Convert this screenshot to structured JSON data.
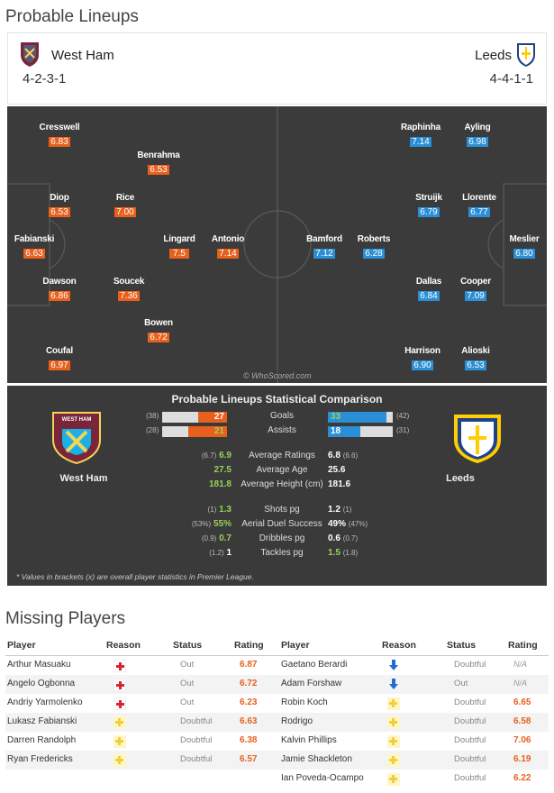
{
  "title": "Probable Lineups",
  "home": {
    "name": "West Ham",
    "formation": "4-2-3-1",
    "color": "#e8601c",
    "players": [
      {
        "name": "Cresswell",
        "rating": "6.83"
      },
      {
        "name": "Benrahma",
        "rating": "6.53"
      },
      {
        "name": "Diop",
        "rating": "6.53"
      },
      {
        "name": "Rice",
        "rating": "7.00"
      },
      {
        "name": "Fabianski",
        "rating": "6.63"
      },
      {
        "name": "Lingard",
        "rating": "7.5"
      },
      {
        "name": "Antonio",
        "rating": "7.14"
      },
      {
        "name": "Dawson",
        "rating": "6.86"
      },
      {
        "name": "Soucek",
        "rating": "7.36"
      },
      {
        "name": "Bowen",
        "rating": "6.72"
      },
      {
        "name": "Coufal",
        "rating": "6.97"
      }
    ]
  },
  "away": {
    "name": "Leeds",
    "formation": "4-4-1-1",
    "color": "#2a8fd6",
    "players": [
      {
        "name": "Raphinha",
        "rating": "7.14"
      },
      {
        "name": "Ayling",
        "rating": "6.98"
      },
      {
        "name": "Struijk",
        "rating": "6.79"
      },
      {
        "name": "Llorente",
        "rating": "6.77"
      },
      {
        "name": "Bamford",
        "rating": "7.12"
      },
      {
        "name": "Roberts",
        "rating": "6.28"
      },
      {
        "name": "Meslier",
        "rating": "6.80"
      },
      {
        "name": "Dallas",
        "rating": "6.84"
      },
      {
        "name": "Cooper",
        "rating": "7.09"
      },
      {
        "name": "Harrison",
        "rating": "6.90"
      },
      {
        "name": "Alioski",
        "rating": "6.53"
      }
    ]
  },
  "watermark": "© WhoScored.com",
  "comparison": {
    "title": "Probable Lineups Statistical Comparison",
    "home_crest_text": "WEST HAM UNITED · LONDON",
    "goals": {
      "label": "Goals",
      "home": "27",
      "home_br": "(38)",
      "away": "33",
      "away_br": "(42)",
      "home_frac": 0.45,
      "away_frac": 0.9
    },
    "assists": {
      "label": "Assists",
      "home": "21",
      "home_br": "(28)",
      "away": "18",
      "away_br": "(31)",
      "home_frac": 0.6,
      "away_frac": 0.5
    },
    "stats": [
      {
        "label": "Average Ratings",
        "home_br": "(6.7)",
        "home": "6.9",
        "away": "6.8",
        "away_br": "(6.6)"
      },
      {
        "label": "Average Age",
        "home_br": "",
        "home": "27.5",
        "away": "25.6",
        "away_br": ""
      },
      {
        "label": "Average Height (cm)",
        "home_br": "",
        "home": "181.8",
        "away": "181.6",
        "away_br": ""
      },
      {
        "label": "Shots pg",
        "home_br": "(1)",
        "home": "1.3",
        "away": "1.2",
        "away_br": "(1)"
      },
      {
        "label": "Aerial Duel Success",
        "home_br": "(53%)",
        "home": "55%",
        "away": "49%",
        "away_br": "(47%)"
      },
      {
        "label": "Dribbles pg",
        "home_br": "(0.9)",
        "home": "0.7",
        "away": "0.6",
        "away_br": "(0.7)"
      },
      {
        "label": "Tackles pg",
        "home_br": "(1.2)",
        "home": "1",
        "away": "1.5",
        "away_br": "(1.8)"
      }
    ],
    "note": "* Values in brackets (x) are overall player statistics in Premier League."
  },
  "missing": {
    "title": "Missing Players",
    "headers": {
      "player": "Player",
      "reason": "Reason",
      "status": "Status",
      "rating": "Rating"
    },
    "home": [
      {
        "player": "Arthur Masuaku",
        "reason": "injury",
        "status": "Out",
        "rating": "6.87"
      },
      {
        "player": "Angelo Ogbonna",
        "reason": "injury",
        "status": "Out",
        "rating": "6.72"
      },
      {
        "player": "Andriy Yarmolenko",
        "reason": "injury",
        "status": "Out",
        "rating": "6.23"
      },
      {
        "player": "Lukasz Fabianski",
        "reason": "doubt",
        "status": "Doubtful",
        "rating": "6.63"
      },
      {
        "player": "Darren Randolph",
        "reason": "doubt",
        "status": "Doubtful",
        "rating": "6.38"
      },
      {
        "player": "Ryan Fredericks",
        "reason": "doubt",
        "status": "Doubtful",
        "rating": "6.57"
      }
    ],
    "away": [
      {
        "player": "Gaetano Berardi",
        "reason": "arrow",
        "status": "Doubtful",
        "rating": "N/A"
      },
      {
        "player": "Adam Forshaw",
        "reason": "arrow",
        "status": "Out",
        "rating": "N/A"
      },
      {
        "player": "Robin Koch",
        "reason": "doubt",
        "status": "Doubtful",
        "rating": "6.65"
      },
      {
        "player": "Rodrigo",
        "reason": "doubt",
        "status": "Doubtful",
        "rating": "6.58"
      },
      {
        "player": "Kalvin Phillips",
        "reason": "doubt",
        "status": "Doubtful",
        "rating": "7.06"
      },
      {
        "player": "Jamie Shackleton",
        "reason": "doubt",
        "status": "Doubtful",
        "rating": "6.19"
      },
      {
        "player": "Ian Poveda-Ocampo",
        "reason": "doubt",
        "status": "Doubtful",
        "rating": "6.22"
      }
    ]
  }
}
